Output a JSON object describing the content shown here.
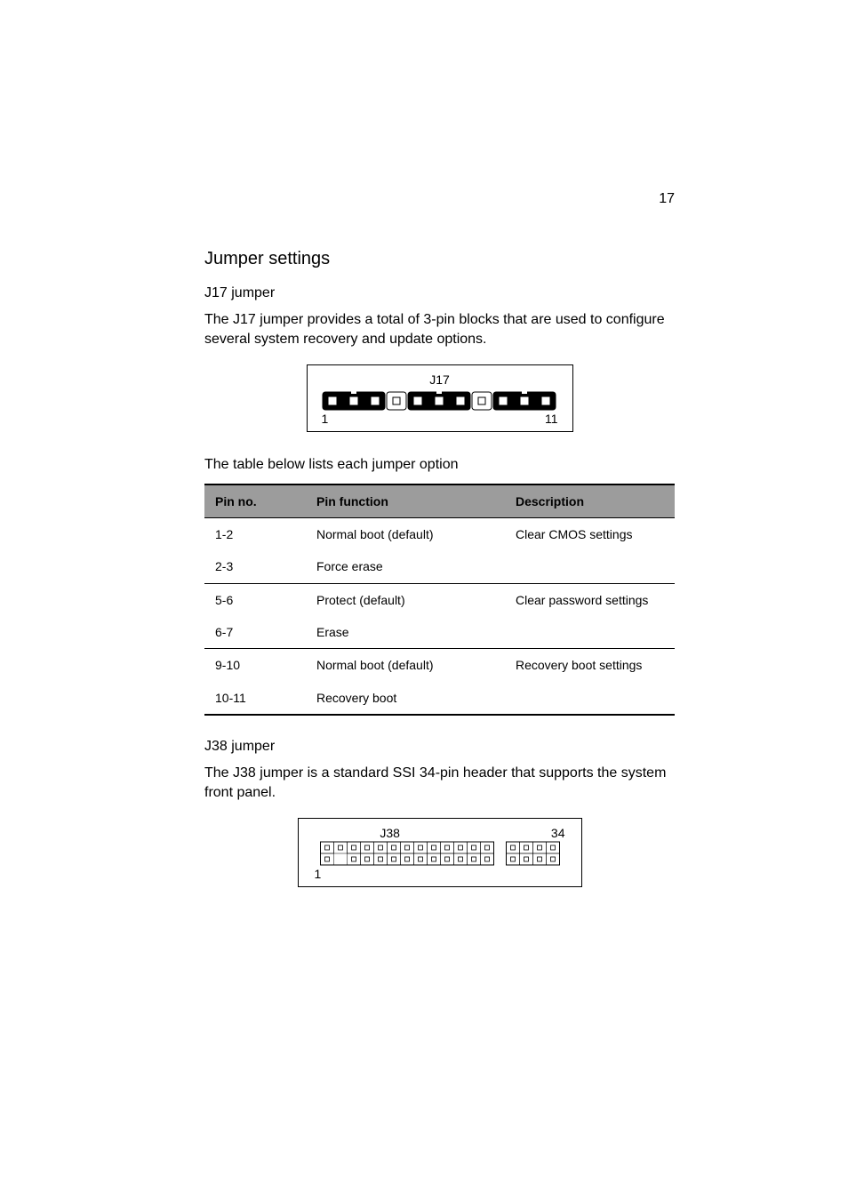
{
  "page_number": "17",
  "section_title": "Jumper settings",
  "j17": {
    "heading": "J17 jumper",
    "intro": "The J17 jumper provides a total of 3-pin blocks that are used to configure several system recovery and update options.",
    "figure": {
      "label": "J17",
      "left_marker": "1",
      "right_marker": "11",
      "pin_count": 11,
      "jumper_groups": [
        {
          "start": 1,
          "end": 3,
          "filled": true
        },
        {
          "start": 4,
          "end": 4,
          "filled": false
        },
        {
          "start": 5,
          "end": 7,
          "filled": true
        },
        {
          "start": 8,
          "end": 8,
          "filled": false
        },
        {
          "start": 9,
          "end": 11,
          "filled": true
        }
      ],
      "colors": {
        "fill": "#000000",
        "empty": "#ffffff",
        "pin": "#ffffff",
        "pin_border": "#000000",
        "box_border": "#000000"
      }
    },
    "table_caption": "The table below lists each jumper option",
    "table": {
      "header_bg": "#9c9c9c",
      "row_border": "#000000",
      "columns": [
        "Pin no.",
        "Pin function",
        "Description"
      ],
      "groups": [
        {
          "description": "Clear CMOS settings",
          "rows": [
            {
              "pin": "1-2",
              "func": "Normal boot (default)"
            },
            {
              "pin": "2-3",
              "func": "Force erase"
            }
          ]
        },
        {
          "description": "Clear password settings",
          "rows": [
            {
              "pin": "5-6",
              "func": "Protect (default)"
            },
            {
              "pin": "6-7",
              "func": "Erase"
            }
          ]
        },
        {
          "description": "Recovery boot settings",
          "rows": [
            {
              "pin": "9-10",
              "func": "Normal boot (default)"
            },
            {
              "pin": "10-11",
              "func": "Recovery boot"
            }
          ]
        }
      ]
    }
  },
  "j38": {
    "heading": "J38 jumper",
    "intro": "The J38 jumper is a standard SSI 34-pin header that supports the system front panel.",
    "figure": {
      "label": "J38",
      "left_marker": "1",
      "right_marker": "34",
      "cols": 17,
      "rows": 2,
      "gap_after_col": 13,
      "missing_bottom_col": 2,
      "colors": {
        "pin": "#ffffff",
        "pin_border": "#000000",
        "box_border": "#000000"
      }
    }
  }
}
